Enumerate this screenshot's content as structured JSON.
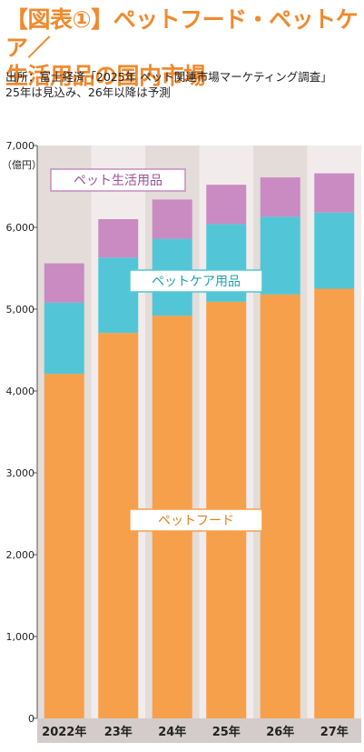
{
  "header": {
    "title_line1": "【図表①】ペットフード・ペットケア／",
    "title_line2": "生活用品の国内市場",
    "source_line1": "出所：富士経済「2025年 ペット関連市場マーケティング調査」",
    "source_line2": "25年は見込み、26年以降は予測"
  },
  "colors": {
    "food": "#f7a04b",
    "care": "#52c6d6",
    "living": "#c98bc2",
    "title": "#ef8a2f",
    "band_light": "#f1eceb",
    "band_dark": "#e3dcd9",
    "xaxis_band": "#d3ccca"
  },
  "chart_data": {
    "type": "bar",
    "stacked": true,
    "categories": [
      "2022年",
      "23年",
      "24年",
      "25年",
      "26年",
      "27年"
    ],
    "unit_label": "（億円）",
    "ylim": [
      0,
      7000
    ],
    "yticks": [
      0,
      1000,
      2000,
      3000,
      4000,
      5000,
      6000,
      7000
    ],
    "ytick_labels": [
      "0",
      "1,000",
      "2,000",
      "3,000",
      "4,000",
      "5,000",
      "6,000",
      "7,000"
    ],
    "series": [
      {
        "name": "ペットフード",
        "color_key": "food",
        "values": [
          4210,
          4710,
          4920,
          5090,
          5180,
          5250
        ]
      },
      {
        "name": "ペットケア用品",
        "color_key": "care",
        "values": [
          870,
          920,
          940,
          950,
          950,
          930
        ]
      },
      {
        "name": "ペット生活用品",
        "color_key": "living",
        "values": [
          480,
          470,
          480,
          480,
          480,
          480
        ]
      }
    ],
    "legend_placement": "inline labels"
  }
}
